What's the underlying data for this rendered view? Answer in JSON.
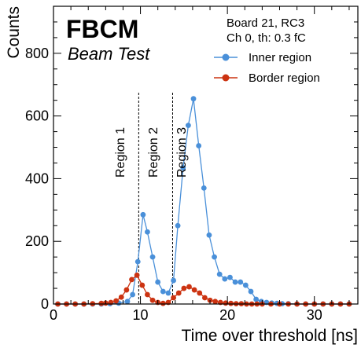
{
  "chart_data": {
    "type": "line",
    "brand": "FBCM",
    "brand_subtitle": "Beam Test",
    "info_lines": [
      "Board 21, RC3",
      "Ch 0, th: 0.3 fC"
    ],
    "xlabel": "Time over threshold [ns]",
    "ylabel": "Counts",
    "xlim": [
      0,
      35
    ],
    "ylim": [
      0,
      950
    ],
    "x_ticks": [
      0,
      10,
      20,
      30
    ],
    "y_ticks": [
      0,
      200,
      400,
      600,
      800
    ],
    "legend_position": "top-right",
    "regions": [
      {
        "label": "Region 1",
        "boundary": 9.8
      },
      {
        "label": "Region 2",
        "boundary": 13.7
      },
      {
        "label": "Region 3",
        "boundary": null
      }
    ],
    "series": [
      {
        "name": "Inner region",
        "color": "#4a90d9",
        "x": [
          0.5,
          1.5,
          2.5,
          3.5,
          4.5,
          5.5,
          6.5,
          7.5,
          8.5,
          9.1,
          9.7,
          10.3,
          10.8,
          11.4,
          12,
          12.6,
          13.2,
          13.8,
          14.3,
          14.9,
          15.5,
          16.1,
          16.7,
          17.3,
          17.9,
          18.5,
          19.1,
          19.7,
          20.3,
          20.9,
          21.5,
          22.1,
          22.7,
          23.3,
          23.9,
          24.5,
          25.1,
          25.7,
          26.3,
          27,
          28,
          29,
          30,
          31,
          32,
          33,
          34
        ],
        "y": [
          0,
          0,
          0,
          0,
          0,
          0,
          1,
          3,
          8,
          30,
          135,
          285,
          230,
          150,
          70,
          40,
          35,
          75,
          250,
          435,
          570,
          655,
          505,
          370,
          220,
          150,
          95,
          80,
          85,
          70,
          70,
          60,
          40,
          15,
          8,
          5,
          3,
          2,
          1,
          1,
          0,
          0,
          0,
          0,
          0,
          0,
          0
        ]
      },
      {
        "name": "Border region",
        "color": "#cc3311",
        "x": [
          0.5,
          1.5,
          2.5,
          3.5,
          4.5,
          5.5,
          6,
          6.6,
          7.2,
          7.8,
          8.4,
          9,
          9.6,
          10.2,
          10.8,
          11.4,
          12,
          12.6,
          13.2,
          13.8,
          14.4,
          15,
          15.6,
          16.2,
          16.8,
          17.4,
          18,
          18.6,
          19.2,
          19.8,
          20.4,
          21,
          21.6,
          22.2,
          22.8,
          23.4,
          24,
          25,
          26,
          27,
          28,
          29,
          30,
          31,
          32,
          33,
          34
        ],
        "y": [
          0,
          0,
          0,
          0,
          1,
          2,
          3,
          5,
          10,
          22,
          45,
          78,
          92,
          60,
          30,
          12,
          5,
          2,
          5,
          20,
          35,
          50,
          55,
          45,
          35,
          20,
          12,
          8,
          5,
          3,
          2,
          1,
          1,
          0,
          0,
          0,
          0,
          0,
          0,
          0,
          0,
          0,
          0,
          0,
          0,
          0,
          0
        ]
      }
    ]
  }
}
